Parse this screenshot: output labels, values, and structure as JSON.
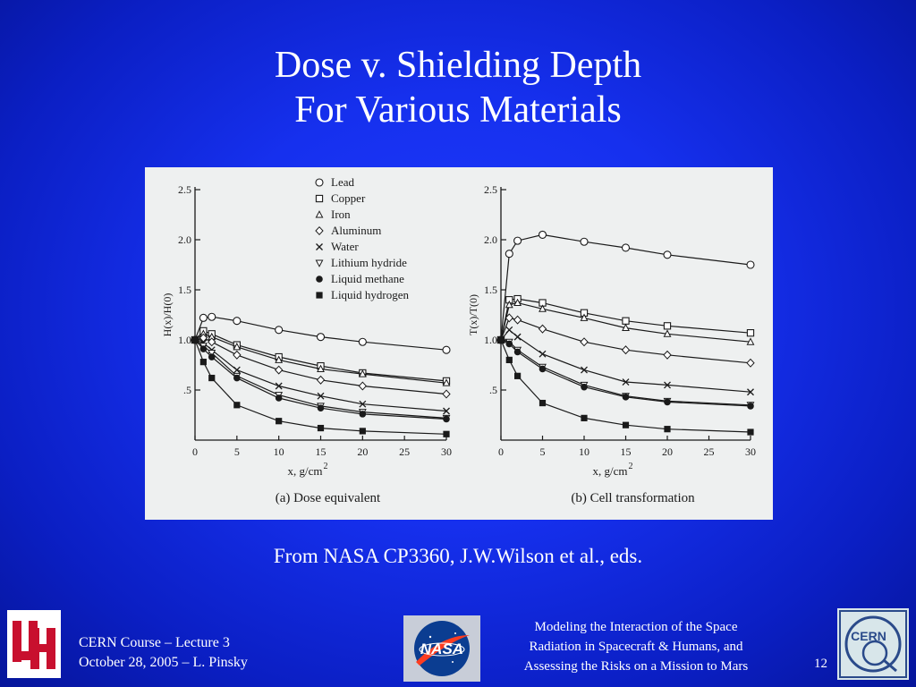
{
  "slide": {
    "title_line1": "Dose v.  Shielding Depth",
    "title_line2": "For Various Materials",
    "source": "From NASA CP3360, J.W.Wilson et al., eds.",
    "footer_left_line1": "CERN Course – Lecture 3",
    "footer_left_line2": "October 28, 2005 – L. Pinsky",
    "footer_mid_line1": "Modeling the Interaction of the Space",
    "footer_mid_line2": "Radiation in Spacecraft & Humans, and",
    "footer_mid_line3": "Assessing the Risks on a Mission to Mars",
    "page_number": "12",
    "logos": {
      "uh": "UH",
      "nasa": "NASA",
      "cern": "CERN"
    }
  },
  "chart_data": [
    {
      "type": "line",
      "caption": "(a) Dose equivalent",
      "ylabel": "H(x)/H(0)",
      "xlabel": "x, g/cm",
      "xlabel_sup": "2",
      "xlim": [
        0,
        30
      ],
      "ylim": [
        0,
        2.5
      ],
      "xticks": [
        "0",
        "5",
        "10",
        "15",
        "20",
        "25",
        "30"
      ],
      "yticks": [
        ".5",
        "1.0",
        "1.5",
        "2.0",
        "2.5"
      ],
      "x": [
        0,
        1,
        2,
        5,
        10,
        15,
        20,
        30
      ],
      "series": [
        {
          "name": "Lead",
          "marker": "circle-open",
          "values": [
            1.0,
            1.22,
            1.23,
            1.19,
            1.1,
            1.03,
            0.98,
            0.9
          ]
        },
        {
          "name": "Copper",
          "marker": "square-open",
          "values": [
            1.0,
            1.09,
            1.06,
            0.95,
            0.83,
            0.74,
            0.67,
            0.59
          ]
        },
        {
          "name": "Iron",
          "marker": "triangle-open",
          "values": [
            1.0,
            1.06,
            1.03,
            0.93,
            0.8,
            0.71,
            0.66,
            0.57
          ]
        },
        {
          "name": "Aluminum",
          "marker": "diamond-open",
          "values": [
            1.0,
            1.02,
            0.98,
            0.85,
            0.7,
            0.6,
            0.54,
            0.46
          ]
        },
        {
          "name": "Water",
          "marker": "x",
          "values": [
            1.0,
            0.97,
            0.9,
            0.7,
            0.54,
            0.44,
            0.36,
            0.29
          ]
        },
        {
          "name": "Lithium hydride",
          "marker": "triangle-down-open",
          "values": [
            1.0,
            0.94,
            0.87,
            0.64,
            0.45,
            0.34,
            0.28,
            0.22
          ]
        },
        {
          "name": "Liquid methane",
          "marker": "circle-filled",
          "values": [
            1.0,
            0.91,
            0.83,
            0.62,
            0.42,
            0.32,
            0.26,
            0.21
          ]
        },
        {
          "name": "Liquid hydrogen",
          "marker": "square-filled",
          "values": [
            1.0,
            0.78,
            0.62,
            0.35,
            0.19,
            0.12,
            0.09,
            0.06
          ]
        }
      ]
    },
    {
      "type": "line",
      "caption": "(b) Cell transformation",
      "ylabel": "T(x)/T(0)",
      "xlabel": "x, g/cm",
      "xlabel_sup": "2",
      "xlim": [
        0,
        30
      ],
      "ylim": [
        0,
        2.5
      ],
      "xticks": [
        "0",
        "5",
        "10",
        "15",
        "20",
        "25",
        "30"
      ],
      "yticks": [
        ".5",
        "1.0",
        "1.5",
        "2.0",
        "2.5"
      ],
      "x": [
        0,
        1,
        2,
        5,
        10,
        15,
        20,
        30
      ],
      "series": [
        {
          "name": "Lead",
          "marker": "circle-open",
          "values": [
            1.0,
            1.86,
            1.99,
            2.05,
            1.98,
            1.92,
            1.85,
            1.75
          ]
        },
        {
          "name": "Copper",
          "marker": "square-open",
          "values": [
            1.0,
            1.4,
            1.41,
            1.37,
            1.27,
            1.19,
            1.14,
            1.07
          ]
        },
        {
          "name": "Iron",
          "marker": "triangle-open",
          "values": [
            1.0,
            1.35,
            1.37,
            1.31,
            1.22,
            1.12,
            1.06,
            0.98
          ]
        },
        {
          "name": "Aluminum",
          "marker": "diamond-open",
          "values": [
            1.0,
            1.22,
            1.2,
            1.11,
            0.98,
            0.9,
            0.85,
            0.77
          ]
        },
        {
          "name": "Water",
          "marker": "x",
          "values": [
            1.0,
            1.1,
            1.03,
            0.86,
            0.7,
            0.58,
            0.55,
            0.48
          ]
        },
        {
          "name": "Lithium hydride",
          "marker": "triangle-down-open",
          "values": [
            1.0,
            0.98,
            0.9,
            0.73,
            0.55,
            0.44,
            0.39,
            0.35
          ]
        },
        {
          "name": "Liquid methane",
          "marker": "circle-filled",
          "values": [
            1.0,
            0.96,
            0.88,
            0.71,
            0.53,
            0.43,
            0.38,
            0.34
          ]
        },
        {
          "name": "Liquid hydrogen",
          "marker": "square-filled",
          "values": [
            1.0,
            0.8,
            0.64,
            0.37,
            0.22,
            0.15,
            0.11,
            0.08
          ]
        }
      ]
    }
  ]
}
